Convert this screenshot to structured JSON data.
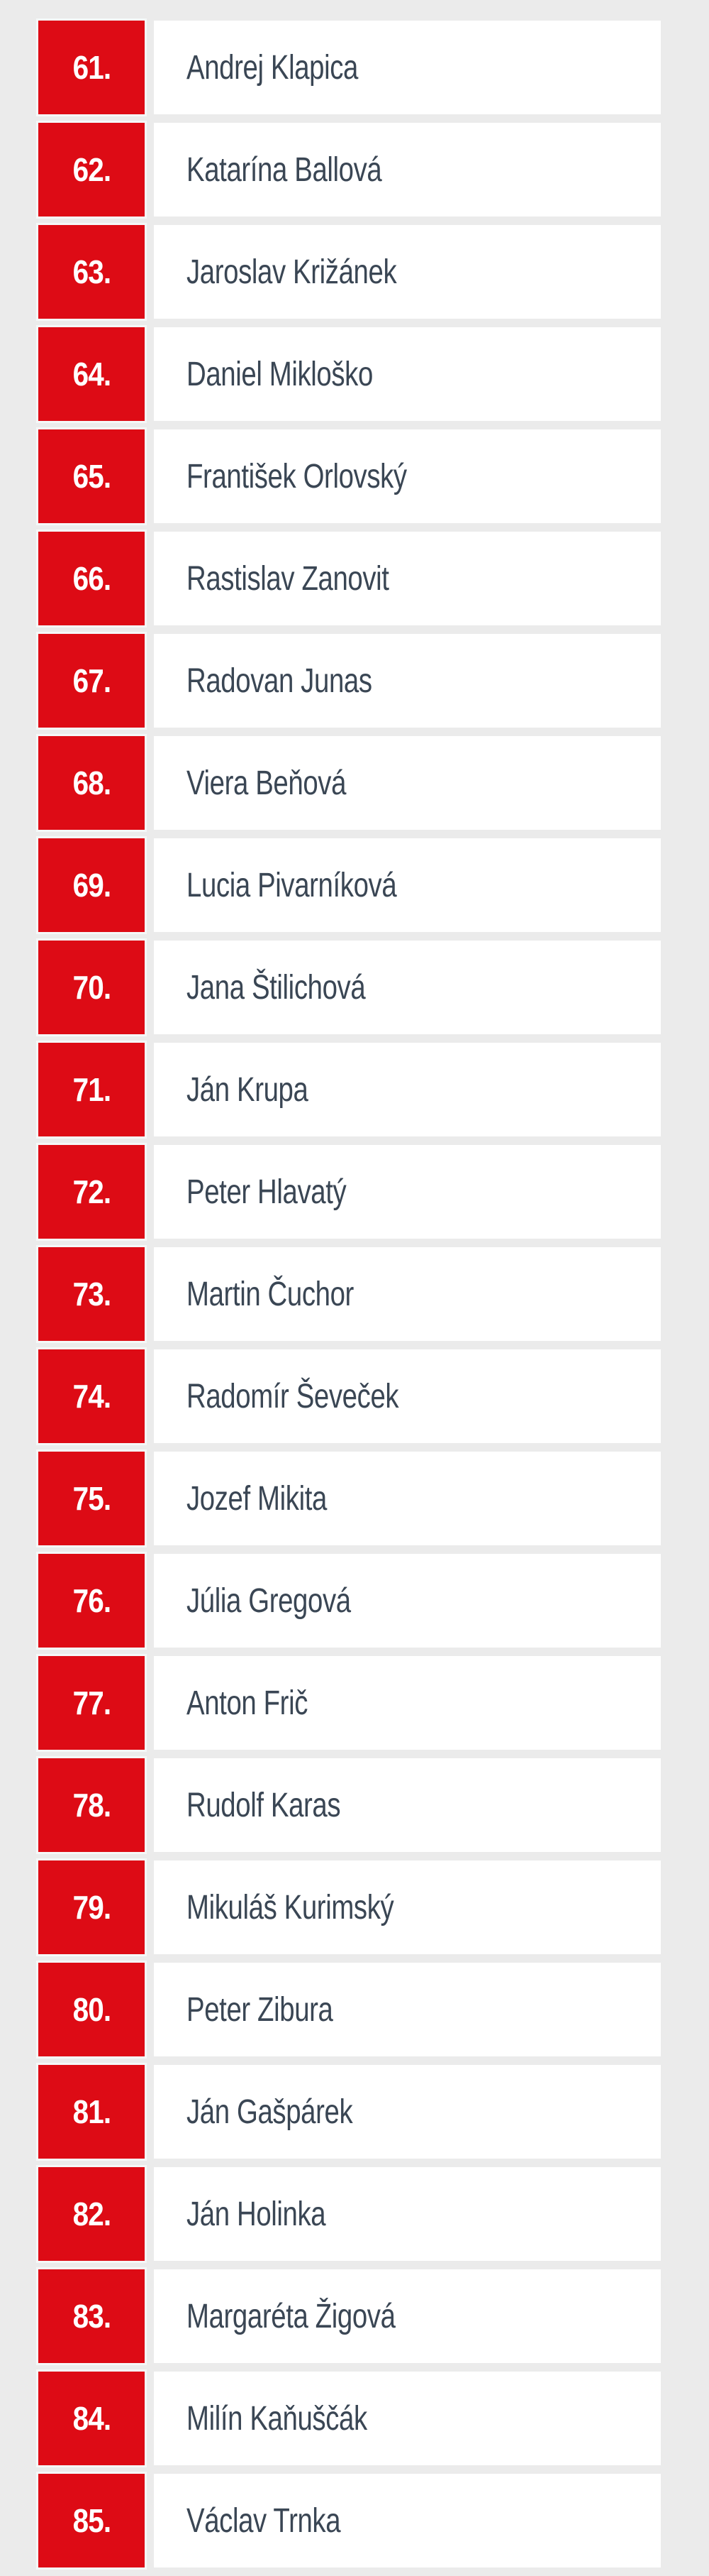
{
  "page": {
    "background_color": "#ebebeb",
    "accent_color": "#dd0b15",
    "name_text_color": "#3a4654"
  },
  "candidate_list": {
    "items": [
      {
        "rank": "61.",
        "name": "Andrej Klapica"
      },
      {
        "rank": "62.",
        "name": "Katarína Ballová"
      },
      {
        "rank": "63.",
        "name": "Jaroslav Križánek"
      },
      {
        "rank": "64.",
        "name": "Daniel Mikloško"
      },
      {
        "rank": "65.",
        "name": "František Orlovský"
      },
      {
        "rank": "66.",
        "name": "Rastislav Zanovit"
      },
      {
        "rank": "67.",
        "name": "Radovan Junas"
      },
      {
        "rank": "68.",
        "name": "Viera Beňová"
      },
      {
        "rank": "69.",
        "name": "Lucia Pivarníková"
      },
      {
        "rank": "70.",
        "name": "Jana Štilichová"
      },
      {
        "rank": "71.",
        "name": "Ján Krupa"
      },
      {
        "rank": "72.",
        "name": "Peter Hlavatý"
      },
      {
        "rank": "73.",
        "name": "Martin Čuchor"
      },
      {
        "rank": "74.",
        "name": "Radomír Ševeček"
      },
      {
        "rank": "75.",
        "name": "Jozef Mikita"
      },
      {
        "rank": "76.",
        "name": "Júlia Gregová"
      },
      {
        "rank": "77.",
        "name": "Anton Frič"
      },
      {
        "rank": "78.",
        "name": "Rudolf Karas"
      },
      {
        "rank": "79.",
        "name": "Mikuláš Kurimský"
      },
      {
        "rank": "80.",
        "name": "Peter Zibura"
      },
      {
        "rank": "81.",
        "name": "Ján Gašpárek"
      },
      {
        "rank": "82.",
        "name": "Ján Holinka"
      },
      {
        "rank": "83.",
        "name": "Margaréta Žigová"
      },
      {
        "rank": "84.",
        "name": "Milín Kaňuščák"
      },
      {
        "rank": "85.",
        "name": "Václav Trnka"
      }
    ]
  }
}
